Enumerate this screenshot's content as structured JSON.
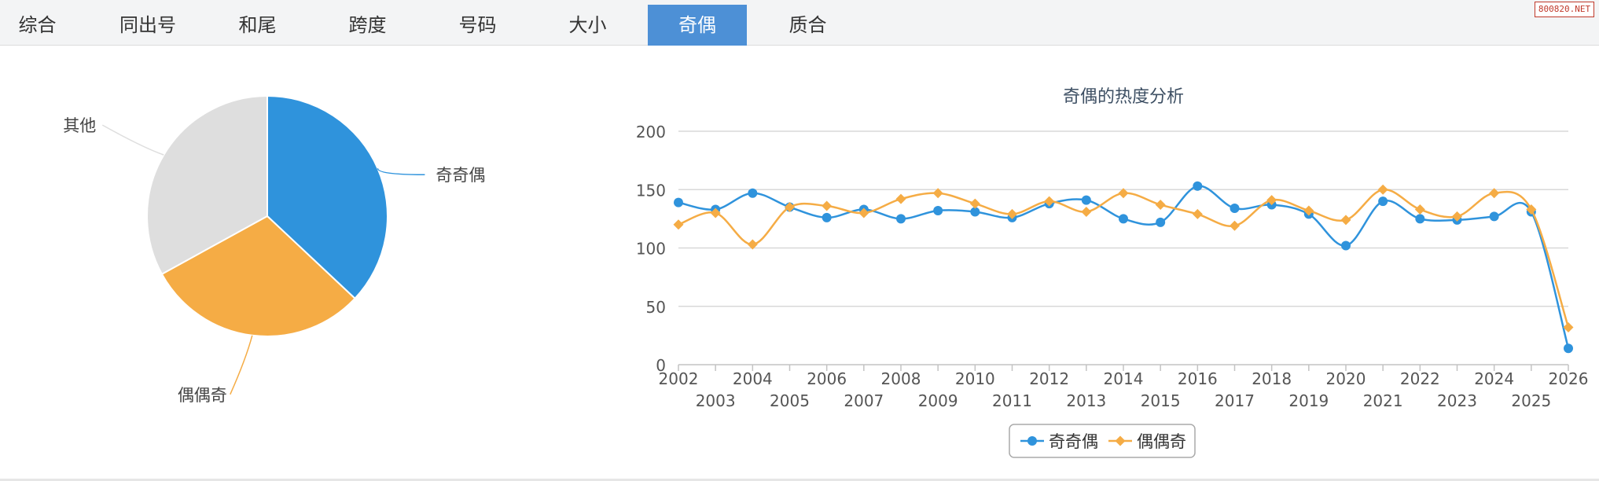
{
  "tabs": [
    {
      "label": "综合",
      "active": false
    },
    {
      "label": "同出号",
      "active": false
    },
    {
      "label": "和尾",
      "active": false
    },
    {
      "label": "跨度",
      "active": false
    },
    {
      "label": "号码",
      "active": false
    },
    {
      "label": "大小",
      "active": false
    },
    {
      "label": "奇偶",
      "active": true
    },
    {
      "label": "质合",
      "active": false
    }
  ],
  "watermark": "800820.NET",
  "colors": {
    "blue": "#2f93dc",
    "orange": "#f5ac45",
    "gray": "#dedede",
    "active_tab": "#4d90d6"
  },
  "chart_data": [
    {
      "type": "pie",
      "labels": [
        "奇奇偶",
        "偶偶奇",
        "其他"
      ],
      "values": [
        37,
        30,
        33
      ]
    },
    {
      "type": "line",
      "title": "奇偶的热度分析",
      "x": [
        "2002",
        "2003",
        "2004",
        "2005",
        "2006",
        "2007",
        "2008",
        "2009",
        "2010",
        "2011",
        "2012",
        "2013",
        "2014",
        "2015",
        "2016",
        "2017",
        "2018",
        "2019",
        "2020",
        "2021",
        "2022",
        "2023",
        "2024",
        "2025",
        "2026"
      ],
      "series": [
        {
          "name": "奇奇偶",
          "values": [
            139,
            133,
            147,
            135,
            126,
            133,
            125,
            132,
            131,
            126,
            138,
            141,
            125,
            122,
            153,
            134,
            137,
            129,
            102,
            140,
            125,
            124,
            127,
            131,
            14
          ]
        },
        {
          "name": "偶偶奇",
          "values": [
            120,
            130,
            103,
            135,
            136,
            130,
            142,
            147,
            138,
            129,
            140,
            131,
            147,
            137,
            129,
            119,
            141,
            132,
            124,
            150,
            133,
            127,
            147,
            133,
            32
          ]
        }
      ],
      "ylim": [
        0,
        200
      ],
      "yticks": [
        0,
        50,
        100,
        150,
        200
      ],
      "grid": true,
      "legend_position": "bottom-center"
    }
  ]
}
